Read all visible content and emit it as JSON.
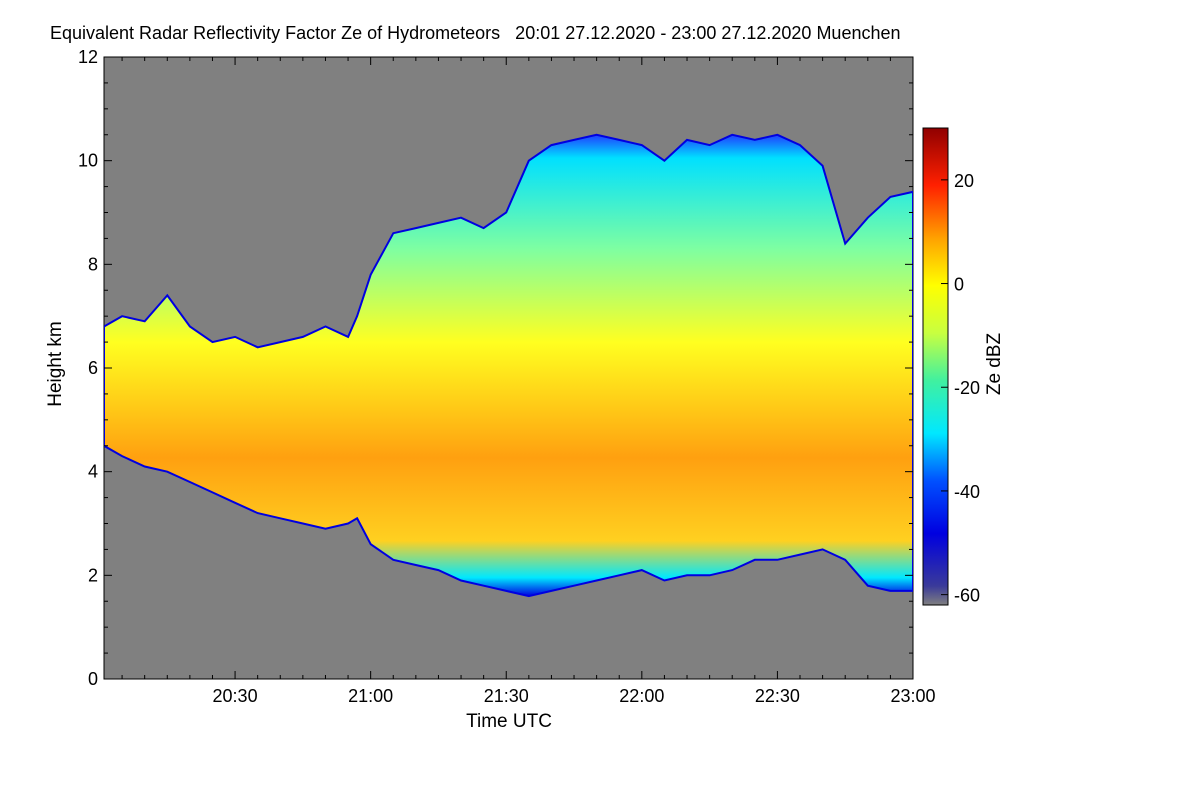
{
  "chart_data": {
    "type": "heatmap",
    "title": "Equivalent Radar Reflectivity Factor Ze of Hydrometeors   20:01 27.12.2020 - 23:00 27.12.2020 Muenchen",
    "xlabel": "Time UTC",
    "ylabel": "Height km",
    "x_ticks": [
      {
        "t": 30,
        "label": "20:30"
      },
      {
        "t": 60,
        "label": "21:00"
      },
      {
        "t": 90,
        "label": "21:30"
      },
      {
        "t": 120,
        "label": "22:00"
      },
      {
        "t": 150,
        "label": "22:30"
      },
      {
        "t": 180,
        "label": "23:00"
      }
    ],
    "xlim_minutes_after_2000": [
      1,
      180
    ],
    "y_ticks": [
      0,
      2,
      4,
      6,
      8,
      10,
      12
    ],
    "ylim": [
      0,
      12
    ],
    "colorbar": {
      "label": "Ze dBZ",
      "range": [
        -62,
        30
      ],
      "ticks": [
        20,
        0,
        -20,
        -40,
        -60
      ]
    },
    "background_color": "#808080",
    "cloud_envelope": {
      "t": [
        1,
        5,
        10,
        15,
        20,
        25,
        30,
        35,
        40,
        45,
        50,
        55,
        57,
        60,
        65,
        70,
        75,
        80,
        85,
        90,
        95,
        100,
        105,
        110,
        115,
        120,
        125,
        130,
        135,
        140,
        145,
        150,
        155,
        160,
        165,
        170,
        175,
        180
      ],
      "top_km": [
        6.8,
        7.0,
        6.9,
        7.4,
        6.8,
        6.5,
        6.6,
        6.4,
        6.5,
        6.6,
        6.8,
        6.6,
        7.0,
        7.8,
        8.6,
        8.7,
        8.8,
        8.9,
        8.7,
        9.0,
        10.0,
        10.3,
        10.4,
        10.5,
        10.4,
        10.3,
        10.0,
        10.4,
        10.3,
        10.5,
        10.4,
        10.5,
        10.3,
        9.9,
        8.4,
        8.9,
        9.3,
        9.4
      ],
      "base_km": [
        4.5,
        4.3,
        4.1,
        4.0,
        3.8,
        3.6,
        3.4,
        3.2,
        3.1,
        3.0,
        2.9,
        3.0,
        3.1,
        2.6,
        2.3,
        2.2,
        2.1,
        1.9,
        1.8,
        1.7,
        1.6,
        1.7,
        1.8,
        1.9,
        2.0,
        2.1,
        1.9,
        2.0,
        2.0,
        2.1,
        2.3,
        2.3,
        2.4,
        2.5,
        2.3,
        1.8,
        1.7,
        1.7
      ]
    }
  }
}
